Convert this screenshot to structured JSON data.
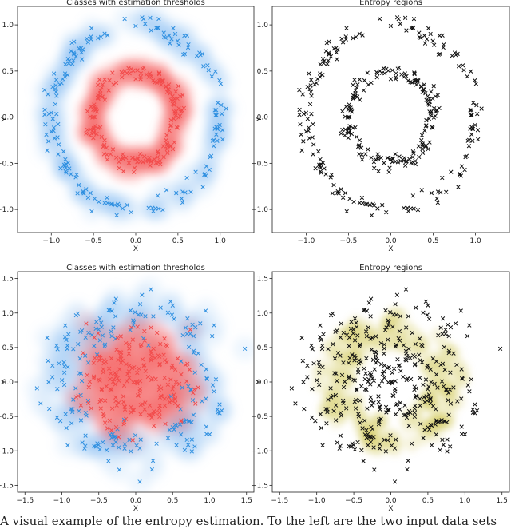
{
  "caption": "A visual example of the entropy estimation. To the left are the two input data sets",
  "chart_data": [
    {
      "type": "scatter",
      "title": "Classes with estimation thresholds",
      "xlabel": "X",
      "ylabel": "Y",
      "xlim": [
        -1.4,
        1.4
      ],
      "ylim": [
        -1.25,
        1.2
      ],
      "xticks": [
        -1.0,
        -0.5,
        0.0,
        0.5,
        1.0
      ],
      "yticks": [
        -1.0,
        -0.5,
        0.0,
        0.5,
        1.0
      ],
      "xtick_labels": [
        "−1.0",
        "−0.5",
        "0.0",
        "0.5",
        "1.0"
      ],
      "ytick_labels": [
        "−1.0",
        "−0.5",
        "0.0",
        "0.5",
        "1.0"
      ],
      "grid": false,
      "dataset": {
        "shape": "two concentric rings",
        "inner_radius": 0.5,
        "outer_radius": 1.0,
        "noise": 0.05,
        "points_per_ring": 180
      },
      "series": [
        {
          "class": "inner",
          "marker": "x",
          "color": "#f24b4b",
          "region_color": "#f47070"
        },
        {
          "class": "outer",
          "marker": "x",
          "color": "#2e8fe0",
          "region_color": "#8cc1f0"
        }
      ]
    },
    {
      "type": "scatter",
      "title": "Entropy regions",
      "xlabel": "X",
      "ylabel": "Y",
      "xlim": [
        -1.4,
        1.4
      ],
      "ylim": [
        -1.25,
        1.2
      ],
      "xticks": [
        -1.0,
        -0.5,
        0.0,
        0.5,
        1.0
      ],
      "yticks": [
        -1.0,
        -0.5,
        0.0,
        0.5,
        1.0
      ],
      "xtick_labels": [
        "−1.0",
        "−0.5",
        "0.0",
        "0.5",
        "1.0"
      ],
      "ytick_labels": [
        "−1.0",
        "−0.5",
        "0.0",
        "0.5",
        "1.0"
      ],
      "grid": false,
      "dataset": {
        "shape": "two concentric rings",
        "inner_radius": 0.5,
        "outer_radius": 1.0,
        "noise": 0.05,
        "points_per_ring": 180
      },
      "series": [
        {
          "class": "all",
          "marker": "x",
          "color": "#111111"
        }
      ]
    },
    {
      "type": "scatter",
      "title": "Classes with estimation thresholds",
      "xlabel": "X",
      "ylabel": "Y",
      "xlim": [
        -1.6,
        1.6
      ],
      "ylim": [
        -1.6,
        1.6
      ],
      "xticks": [
        -1.5,
        -1.0,
        -0.5,
        0.0,
        0.5,
        1.0,
        1.5
      ],
      "yticks": [
        -1.5,
        -1.0,
        -0.5,
        0.0,
        0.5,
        1.0,
        1.5
      ],
      "xtick_labels": [
        "−1.5",
        "−1.0",
        "−0.5",
        "0.0",
        "0.5",
        "1.0",
        "1.5"
      ],
      "ytick_labels": [
        "−1.5",
        "−1.0",
        "−0.5",
        "0.0",
        "0.5",
        "1.0",
        "1.5"
      ],
      "grid": false,
      "dataset": {
        "shape": "two overlapping noisy rings",
        "inner_radius": 0.5,
        "outer_radius": 1.0,
        "noise": 0.2,
        "points_per_ring": 200
      },
      "series": [
        {
          "class": "inner",
          "marker": "x",
          "color": "#f24b4b",
          "region_color": "#f47070"
        },
        {
          "class": "outer",
          "marker": "x",
          "color": "#2e8fe0",
          "region_color": "#8cc1f0"
        }
      ]
    },
    {
      "type": "scatter",
      "title": "Entropy regions",
      "xlabel": "X",
      "ylabel": "Y",
      "xlim": [
        -1.6,
        1.6
      ],
      "ylim": [
        -1.6,
        1.6
      ],
      "xticks": [
        -1.5,
        -1.0,
        -0.5,
        0.0,
        0.5,
        1.0,
        1.5
      ],
      "yticks": [
        -1.5,
        -1.0,
        -0.5,
        0.0,
        0.5,
        1.0,
        1.5
      ],
      "xtick_labels": [
        "−1.5",
        "−1.0",
        "−0.5",
        "0.0",
        "0.5",
        "1.0",
        "1.5"
      ],
      "ytick_labels": [
        "−1.5",
        "−1.0",
        "−0.5",
        "0.0",
        "0.5",
        "1.0",
        "1.5"
      ],
      "grid": false,
      "dataset": {
        "shape": "two overlapping noisy rings",
        "inner_radius": 0.5,
        "outer_radius": 1.0,
        "noise": 0.2,
        "points_per_ring": 200
      },
      "series": [
        {
          "class": "all",
          "marker": "x",
          "color": "#111111"
        }
      ],
      "entropy_region_color": "#d8cf6a"
    }
  ]
}
